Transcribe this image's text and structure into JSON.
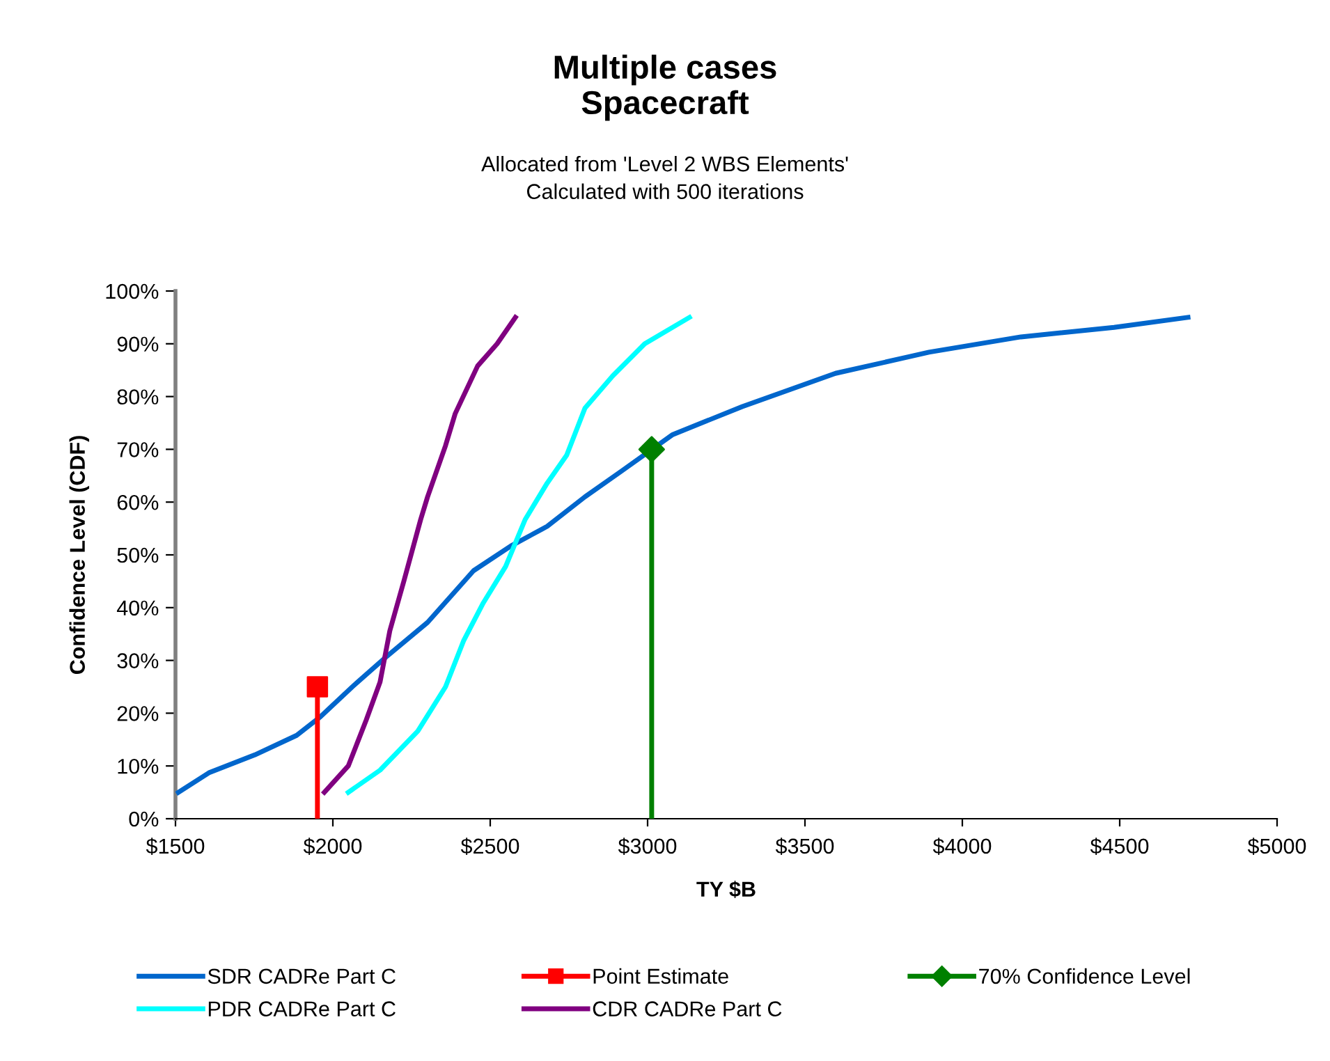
{
  "chart_data": {
    "type": "line",
    "title": "Multiple cases\nSpacecraft",
    "subtitle": "Allocated from 'Level 2 WBS Elements'\nCalculated with 500 iterations",
    "xlabel": "TY $B",
    "ylabel": "Confidence Level (CDF)",
    "xlim": [
      1500,
      5000
    ],
    "ylim": [
      0,
      100
    ],
    "xticks": [
      {
        "value": 1500,
        "label": "$1500"
      },
      {
        "value": 2000,
        "label": "$2000"
      },
      {
        "value": 2500,
        "label": "$2500"
      },
      {
        "value": 3000,
        "label": "$3000"
      },
      {
        "value": 3500,
        "label": "$3500"
      },
      {
        "value": 4000,
        "label": "$4000"
      },
      {
        "value": 4500,
        "label": "$4500"
      },
      {
        "value": 5000,
        "label": "$5000"
      }
    ],
    "yticks": [
      {
        "value": 0,
        "label": "0%"
      },
      {
        "value": 10,
        "label": "10%"
      },
      {
        "value": 20,
        "label": "20%"
      },
      {
        "value": 30,
        "label": "30%"
      },
      {
        "value": 40,
        "label": "40%"
      },
      {
        "value": 50,
        "label": "50%"
      },
      {
        "value": 60,
        "label": "60%"
      },
      {
        "value": 70,
        "label": "70%"
      },
      {
        "value": 80,
        "label": "80%"
      },
      {
        "value": 90,
        "label": "90%"
      },
      {
        "value": 100,
        "label": "100%"
      }
    ],
    "grid": false,
    "legend": "bottom",
    "line_style": "solid",
    "series": [
      {
        "name": "SDR CADRe Part C",
        "color": "#0066cc",
        "x": [
          1509,
          1606,
          1752,
          1885,
          1960,
          2062,
          2168,
          2301,
          2447,
          2566,
          2681,
          2801,
          2920,
          3080,
          3301,
          3597,
          3894,
          4186,
          4482,
          4717
        ],
        "values": [
          5,
          8.7,
          12.1,
          15.8,
          19.3,
          25,
          30.6,
          37.2,
          47,
          51.7,
          55.4,
          61,
          66,
          72.8,
          78.1,
          84.4,
          88.4,
          91.3,
          93.1,
          95
        ],
        "marker": "none"
      },
      {
        "name": "PDR CADRe Part C",
        "color": "#00ffff",
        "x": [
          2049,
          2150,
          2270,
          2358,
          2416,
          2478,
          2549,
          2611,
          2681,
          2743,
          2801,
          2889,
          2991,
          3133
        ],
        "values": [
          5,
          9.2,
          16.6,
          25,
          33.8,
          40.9,
          47.8,
          56.7,
          63.6,
          68.9,
          77.8,
          83.9,
          90,
          95
        ],
        "marker": "none"
      },
      {
        "name": "Point Estimate",
        "type": "scatter",
        "color": "#ff0000",
        "x": [
          1951
        ],
        "values": [
          25
        ],
        "errors": [
          [
            0,
            25
          ]
        ],
        "marker": "square"
      },
      {
        "name": "CDR CADRe Part C",
        "color": "#800080",
        "x": [
          1973,
          2049,
          2106,
          2150,
          2181,
          2226,
          2279,
          2301,
          2358,
          2389,
          2460,
          2522,
          2580
        ],
        "values": [
          5,
          10,
          18.7,
          25.9,
          35.6,
          45.1,
          56.7,
          61,
          70.7,
          76.8,
          85.8,
          90,
          95
        ],
        "marker": "none"
      },
      {
        "name": "70% Confidence Level",
        "type": "scatter",
        "color": "#008000",
        "x": [
          3013
        ],
        "values": [
          70
        ],
        "errors": [
          [
            0,
            70
          ]
        ],
        "marker": "diamond"
      }
    ]
  }
}
